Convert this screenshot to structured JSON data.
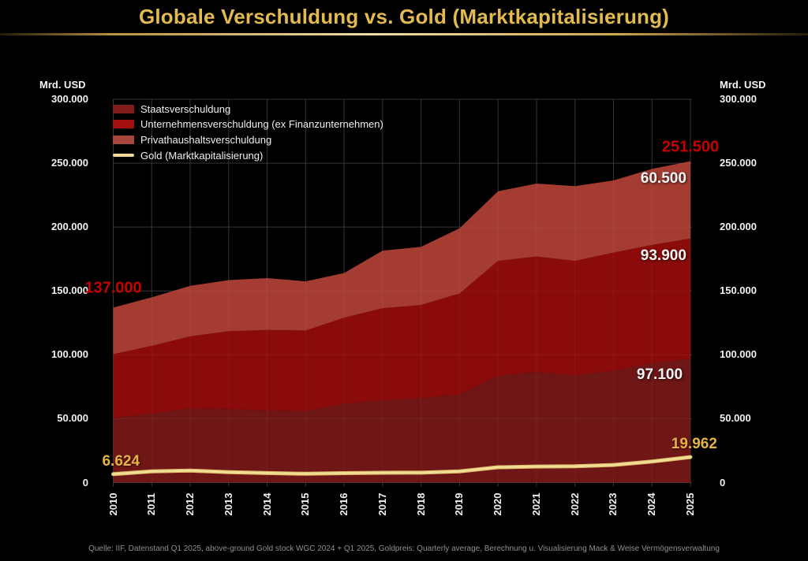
{
  "title": "Globale Verschuldung vs. Gold (Marktkapitalisierung)",
  "left_axis": {
    "title": "Mrd. USD"
  },
  "right_axis": {
    "title": "Mrd. USD"
  },
  "footer": "Quelle: IIF, Datenstand Q1 2025, above-ground Gold stock WGC 2024 + Q1 2025, Goldpreis: Quarterly average, Berechnung u. Visualisierung Mack & Weise Vermögensverwaltung",
  "colors": {
    "background": "#000000",
    "title_gold": "#E2BA50",
    "annotation_red": "#C40000",
    "annotation_gold": "#E3B347",
    "axis_text": "#F0F0F0",
    "grid": "#2B2B2B",
    "footer_text": "#8F8F8F"
  },
  "legend": {
    "items": [
      {
        "label": "Staatsverschuldung",
        "color": "#7E1B1B",
        "marker": "area"
      },
      {
        "label": "Unternehmensverschuldung (ex Finanzunternehmen)",
        "color": "#A31010",
        "marker": "area"
      },
      {
        "label": "Privathaushaltsverschuldung",
        "color": "#A8453C",
        "marker": "area"
      },
      {
        "label": "Gold (Marktkapitalisierung)",
        "color": "#F2DC96",
        "marker": "line"
      }
    ]
  },
  "chart_data": {
    "type": "area",
    "stacked": true,
    "title": "Globale Verschuldung vs. Gold (Marktkapitalisierung)",
    "ylabel": "Mrd. USD",
    "ylim": [
      0,
      300000
    ],
    "grid": true,
    "legend_position": "top-left",
    "x": [
      2010,
      2011,
      2012,
      2013,
      2014,
      2015,
      2016,
      2017,
      2018,
      2019,
      2020,
      2021,
      2022,
      2023,
      2024,
      2025
    ],
    "series": [
      {
        "name": "Staatsverschuldung",
        "kind": "area",
        "color": "#6F1616",
        "values": [
          50500,
          54000,
          58000,
          57500,
          56500,
          56000,
          61500,
          64500,
          66000,
          69000,
          83500,
          86500,
          84000,
          87500,
          93500,
          97100
        ]
      },
      {
        "name": "Unternehmensverschuldung (ex Finanzunternehmen)",
        "kind": "area",
        "color": "#8B0A0A",
        "values": [
          50000,
          53000,
          56500,
          61000,
          63000,
          63000,
          67500,
          72000,
          73000,
          79000,
          90000,
          90500,
          89500,
          92500,
          92500,
          93900
        ]
      },
      {
        "name": "Privathaushaltsverschuldung",
        "kind": "area",
        "color": "#A53C32",
        "values": [
          36500,
          38000,
          39500,
          40000,
          40500,
          38500,
          35000,
          45000,
          45500,
          51000,
          54500,
          57000,
          58500,
          56500,
          59500,
          60500
        ]
      },
      {
        "name": "Gold (Marktkapitalisierung)",
        "kind": "line",
        "color": "#F2DC96",
        "values": [
          6624,
          8800,
          9400,
          8200,
          7500,
          6900,
          7400,
          7700,
          7800,
          8800,
          12000,
          12600,
          12800,
          13800,
          16500,
          19962
        ]
      }
    ],
    "ytick_labels": [
      "300.000",
      "250.000",
      "200.000",
      "150.000",
      "100.000",
      "50.000",
      "0"
    ],
    "ytick_values": [
      300000,
      250000,
      200000,
      150000,
      100000,
      50000,
      0
    ],
    "annotations": [
      {
        "text": "137.000",
        "style": "red",
        "year": 2010,
        "anchor": 152000
      },
      {
        "text": "251.500",
        "style": "red",
        "year": 2025,
        "anchor": 262500
      },
      {
        "text": "60.500",
        "style": "white",
        "year": 2024.3,
        "anchor": 238000
      },
      {
        "text": "93.900",
        "style": "white",
        "year": 2024.3,
        "anchor": 177500
      },
      {
        "text": "97.100",
        "style": "white",
        "year": 2024.2,
        "anchor": 84000
      },
      {
        "text": "19.962",
        "style": "gold",
        "year": 2025.1,
        "anchor": 30000
      },
      {
        "text": "6.624",
        "style": "gold",
        "year": 2010.2,
        "anchor": 16500
      }
    ]
  }
}
